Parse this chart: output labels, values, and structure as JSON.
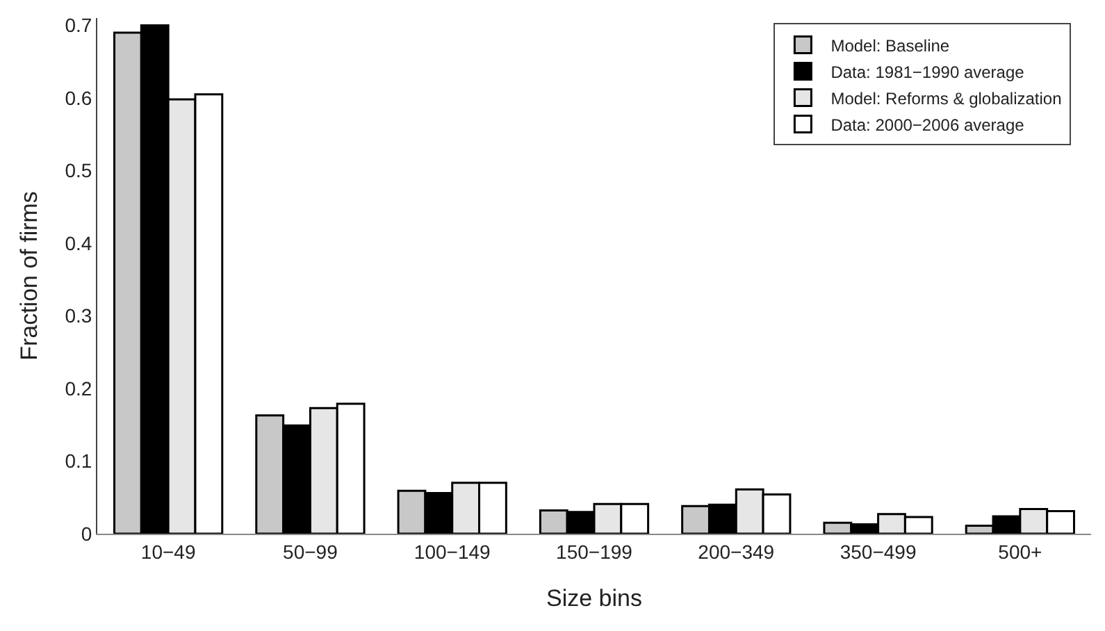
{
  "chart_data": {
    "type": "bar",
    "xlabel": "Size bins",
    "ylabel": "Fraction of firms",
    "categories": [
      "10−49",
      "50−99",
      "100−149",
      "150−199",
      "200−349",
      "350−499",
      "500+"
    ],
    "series": [
      {
        "name": "Model: Baseline",
        "color": "#c8c8c8",
        "values": [
          0.69,
          0.163,
          0.059,
          0.032,
          0.038,
          0.015,
          0.011
        ]
      },
      {
        "name": "Data: 1981−1990 average",
        "color": "#000000",
        "values": [
          0.7,
          0.149,
          0.056,
          0.03,
          0.04,
          0.013,
          0.024
        ]
      },
      {
        "name": "Model: Reforms & globalization",
        "color": "#e6e6e6",
        "values": [
          0.598,
          0.173,
          0.07,
          0.041,
          0.061,
          0.027,
          0.034
        ]
      },
      {
        "name": "Data: 2000−2006 average",
        "color": "#ffffff",
        "values": [
          0.605,
          0.179,
          0.07,
          0.041,
          0.054,
          0.023,
          0.031
        ]
      }
    ],
    "ylim": [
      0,
      0.71
    ],
    "yticks": [
      0,
      0.1,
      0.2,
      0.3,
      0.4,
      0.5,
      0.6,
      0.7
    ],
    "legend": "top right"
  }
}
